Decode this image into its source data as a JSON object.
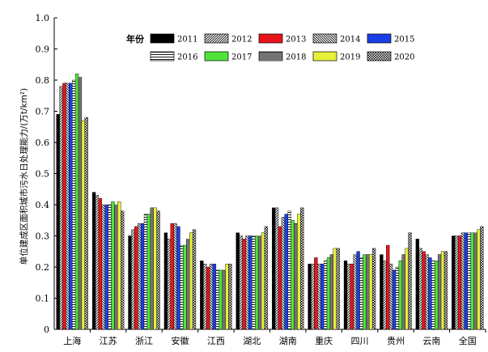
{
  "chart_data": {
    "type": "bar",
    "ylabel": "单位建成区面积城市污水日处理能力/(万t/km²)",
    "ylim": [
      0,
      1.0
    ],
    "yticks": [
      "0",
      "0.1",
      "0.2",
      "0.3",
      "0.4",
      "0.5",
      "0.6",
      "0.7",
      "0.8",
      "0.9",
      "1.0"
    ],
    "categories": [
      "上海",
      "江苏",
      "浙江",
      "安徽",
      "江西",
      "湖北",
      "湖南",
      "重庆",
      "四川",
      "贵州",
      "云南",
      "全国"
    ],
    "legend_title": "年份",
    "legend_position": "top-right",
    "grid": false,
    "series": [
      {
        "name": "2011",
        "pattern": "solid-black",
        "values": [
          0.69,
          0.44,
          0.3,
          0.31,
          0.22,
          0.31,
          0.39,
          0.21,
          0.22,
          0.24,
          0.29,
          0.3
        ]
      },
      {
        "name": "2012",
        "pattern": "diagonal-fwd",
        "values": [
          0.78,
          0.43,
          0.32,
          0.29,
          0.21,
          0.3,
          0.39,
          0.21,
          0.21,
          0.22,
          0.26,
          0.3
        ]
      },
      {
        "name": "2013",
        "pattern": "solid-red",
        "values": [
          0.79,
          0.42,
          0.33,
          0.34,
          0.2,
          0.29,
          0.33,
          0.23,
          0.21,
          0.27,
          0.25,
          0.3
        ]
      },
      {
        "name": "2014",
        "pattern": "diagonal-back",
        "values": [
          0.79,
          0.4,
          0.34,
          0.34,
          0.21,
          0.3,
          0.36,
          0.21,
          0.24,
          0.21,
          0.24,
          0.31
        ]
      },
      {
        "name": "2015",
        "pattern": "solid-blue",
        "values": [
          0.79,
          0.4,
          0.34,
          0.33,
          0.21,
          0.3,
          0.37,
          0.21,
          0.25,
          0.19,
          0.23,
          0.31
        ]
      },
      {
        "name": "2016",
        "pattern": "horizontal",
        "values": [
          0.8,
          0.4,
          0.37,
          0.27,
          0.19,
          0.3,
          0.38,
          0.22,
          0.23,
          0.2,
          0.22,
          0.31
        ]
      },
      {
        "name": "2017",
        "pattern": "solid-green",
        "values": [
          0.82,
          0.41,
          0.37,
          0.27,
          0.19,
          0.3,
          0.35,
          0.23,
          0.24,
          0.22,
          0.22,
          0.31
        ]
      },
      {
        "name": "2018",
        "pattern": "dense-horizontal",
        "values": [
          0.81,
          0.4,
          0.39,
          0.29,
          0.19,
          0.3,
          0.34,
          0.24,
          0.24,
          0.24,
          0.24,
          0.31
        ]
      },
      {
        "name": "2019",
        "pattern": "solid-yellow",
        "values": [
          0.67,
          0.41,
          0.39,
          0.31,
          0.21,
          0.31,
          0.37,
          0.26,
          0.24,
          0.26,
          0.25,
          0.32
        ]
      },
      {
        "name": "2020",
        "pattern": "checker",
        "values": [
          0.68,
          0.38,
          0.38,
          0.32,
          0.21,
          0.33,
          0.39,
          0.26,
          0.26,
          0.31,
          0.25,
          0.33
        ]
      }
    ]
  }
}
